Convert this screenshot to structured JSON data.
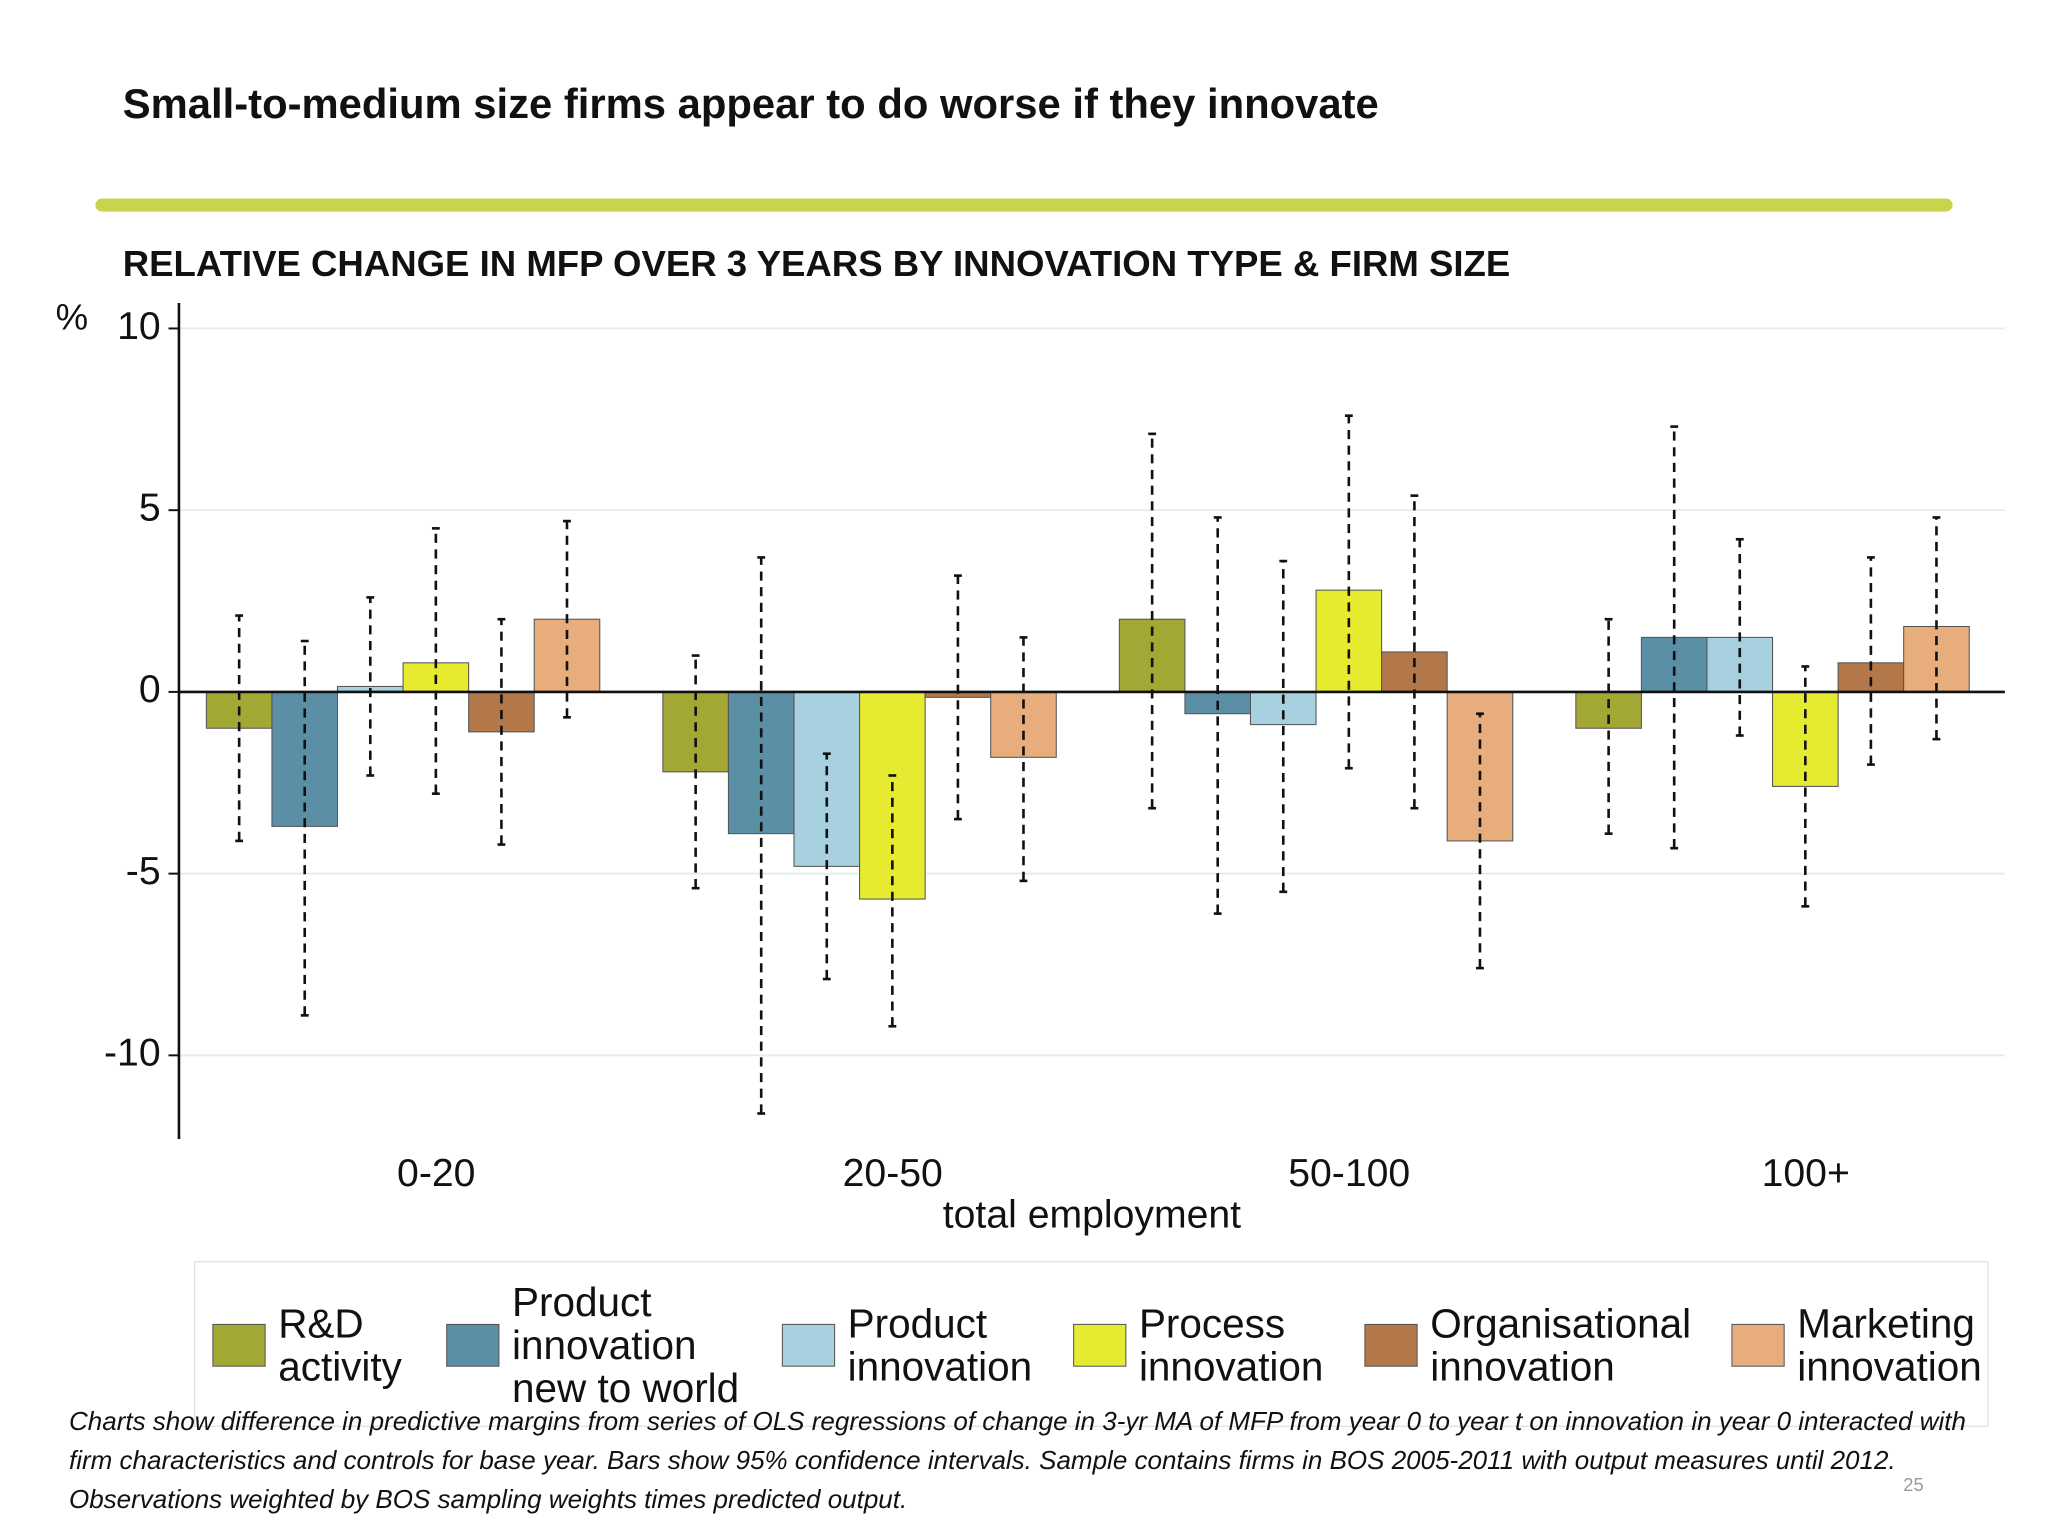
{
  "title": "Small-to-medium size firms appear to do worse if they innovate",
  "footnote": "Charts show difference in predictive margins from series of OLS regressions of change in 3-yr MA of MFP from year 0 to year t on innovation in year 0 interacted with firm characteristics and controls for base year. Bars show 95% confidence intervals. Sample contains firms in BOS 2005-2011 with output measures until 2012. Observations weighted by BOS sampling weights times predicted output.",
  "page_number": "25",
  "chart_data": {
    "type": "bar",
    "subtitle": "RELATIVE CHANGE IN MFP OVER 3 YEARS BY INNOVATION TYPE & FIRM SIZE",
    "y_unit": "%",
    "xlabel": "total employment",
    "categories": [
      "0-20",
      "20-50",
      "50-100",
      "100+"
    ],
    "series": [
      {
        "name": "R&D activity",
        "color": "#a3a834",
        "values": [
          -1.0,
          -2.2,
          2.0,
          -1.0
        ],
        "ci_low": [
          -4.1,
          -5.4,
          -3.2,
          -3.9
        ],
        "ci_high": [
          2.1,
          1.0,
          7.1,
          2.0
        ]
      },
      {
        "name": "Product innovation new to world",
        "color": "#5b8fa6",
        "values": [
          -3.7,
          -3.9,
          -0.6,
          1.5
        ],
        "ci_low": [
          -8.9,
          -11.6,
          -6.1,
          -4.3
        ],
        "ci_high": [
          1.4,
          3.7,
          4.8,
          7.3
        ]
      },
      {
        "name": "Product innovation",
        "color": "#a8d1e0",
        "values": [
          0.15,
          -4.8,
          -0.9,
          1.5
        ],
        "ci_low": [
          -2.3,
          -7.9,
          -5.5,
          -1.2
        ],
        "ci_high": [
          2.6,
          -1.7,
          3.6,
          4.2
        ]
      },
      {
        "name": "Process innovation",
        "color": "#e6eb30",
        "values": [
          0.8,
          -5.7,
          2.8,
          -2.6
        ],
        "ci_low": [
          -2.8,
          -9.2,
          -2.1,
          -5.9
        ],
        "ci_high": [
          4.5,
          -2.3,
          7.6,
          0.7
        ]
      },
      {
        "name": "Organisational innovation",
        "color": "#b3784a",
        "values": [
          -1.1,
          -0.15,
          1.1,
          0.8
        ],
        "ci_low": [
          -4.2,
          -3.5,
          -3.2,
          -2.0
        ],
        "ci_high": [
          2.0,
          3.2,
          5.4,
          3.7
        ]
      },
      {
        "name": "Marketing innovation",
        "color": "#e8ad7c",
        "values": [
          2.0,
          -1.8,
          -4.1,
          1.8
        ],
        "ci_low": [
          -0.7,
          -5.2,
          -7.6,
          -1.3
        ],
        "ci_high": [
          4.7,
          1.5,
          -0.6,
          4.8
        ]
      }
    ],
    "ylim": [
      -12.3,
      10.7
    ],
    "yticks": [
      -10,
      -5,
      0,
      5,
      10
    ],
    "grid": true
  }
}
